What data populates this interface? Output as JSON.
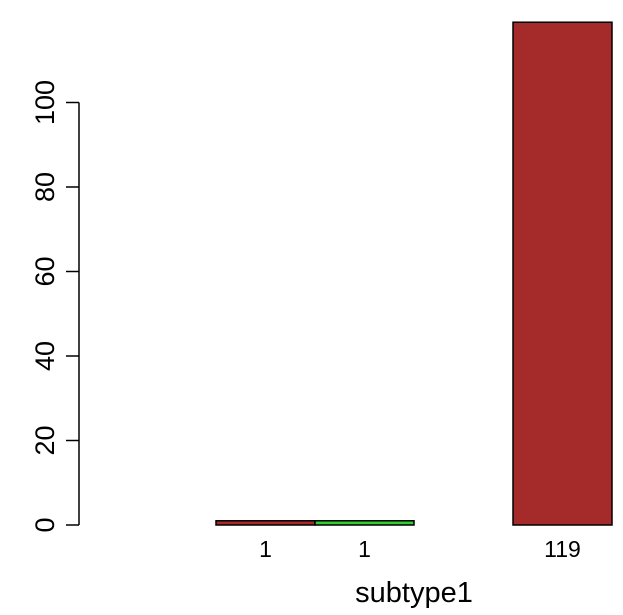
{
  "chart_data": {
    "type": "bar",
    "categories": [
      "1",
      "1",
      "",
      "119"
    ],
    "values": [
      1,
      1,
      0,
      119
    ],
    "bar_labels": [
      "1",
      "1",
      "",
      "119"
    ],
    "colors": [
      "#A52A2A",
      "#32CD32",
      "#A52A2A",
      "#A52A2A"
    ],
    "xlabel": "subtype1",
    "ylabel": "",
    "ylim": [
      0,
      120
    ],
    "yticks": [
      0,
      20,
      40,
      60,
      80,
      100
    ],
    "ytick_labels": [
      "0",
      "20",
      "40",
      "60",
      "80",
      "100"
    ],
    "grid": false,
    "legend": "none"
  }
}
